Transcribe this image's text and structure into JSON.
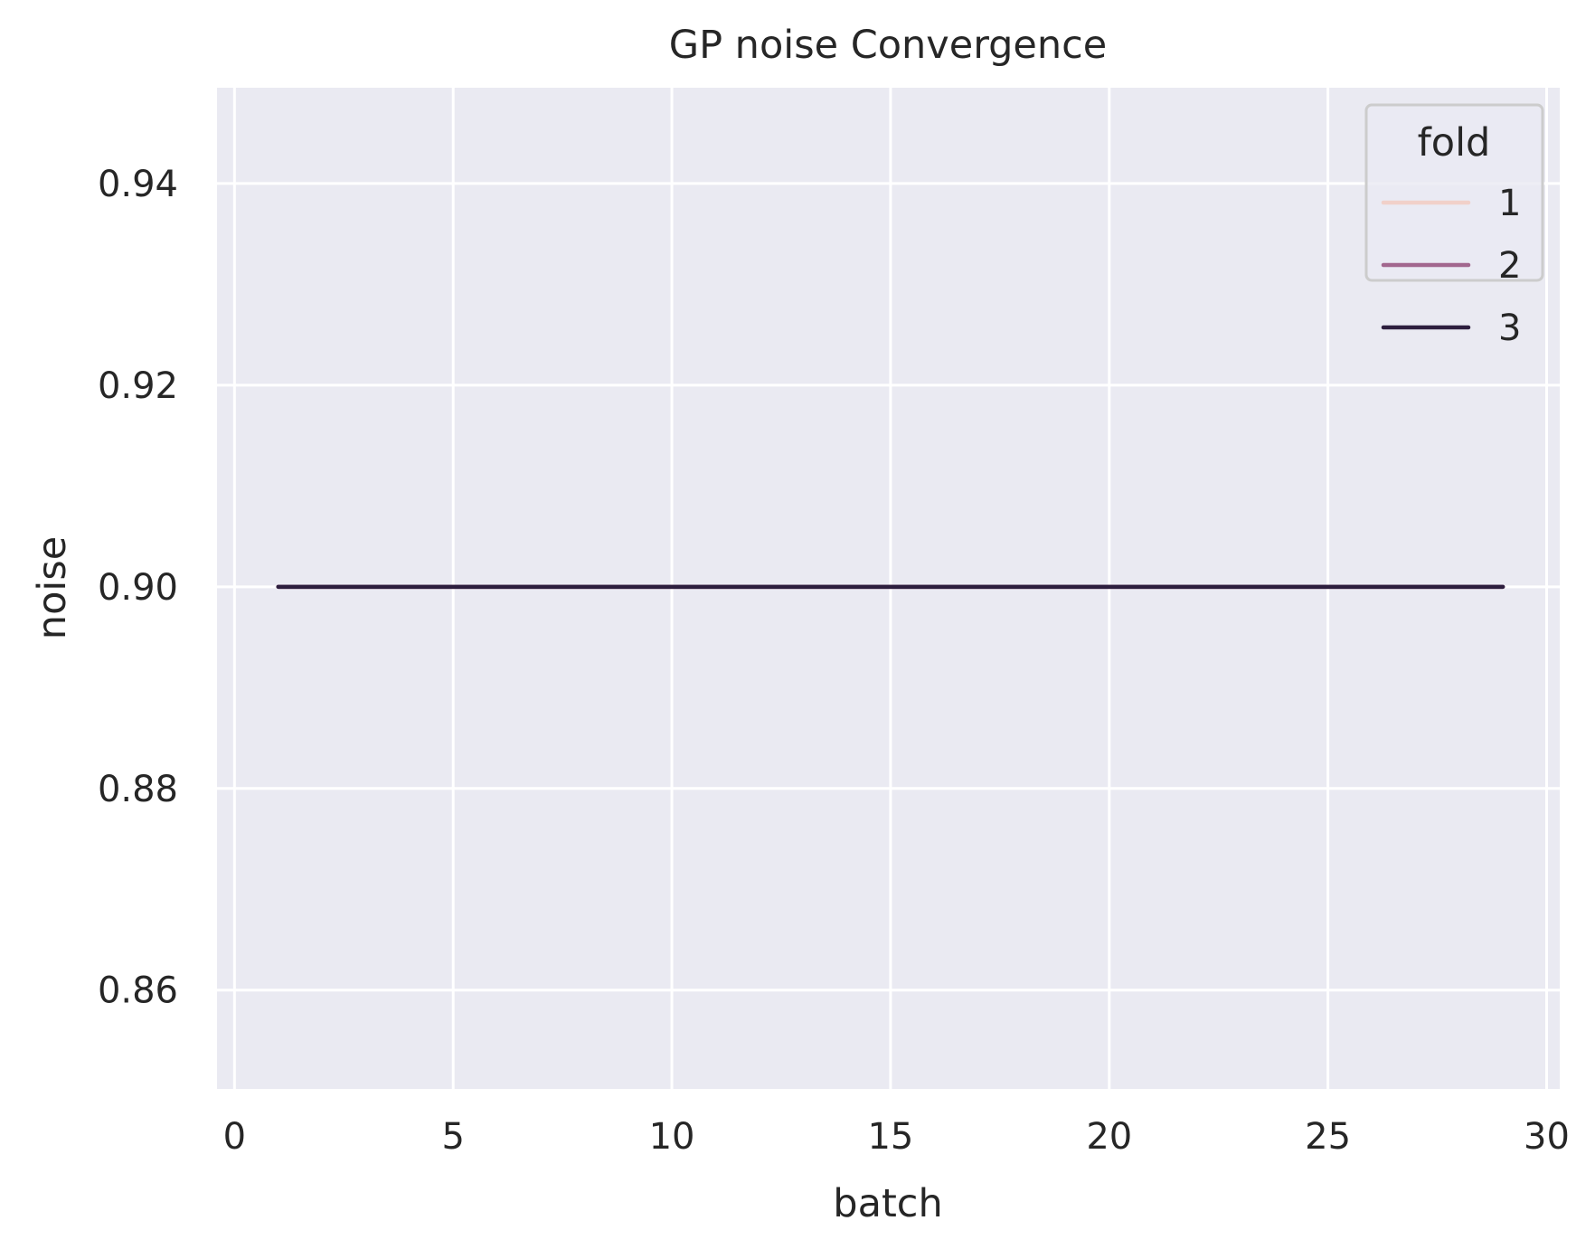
{
  "chart_data": {
    "type": "line",
    "title": "GP noise Convergence",
    "xlabel": "batch",
    "ylabel": "noise",
    "xlim": [
      -0.4,
      30.3
    ],
    "ylim": [
      0.8502,
      0.9495
    ],
    "xticks": [
      0,
      5,
      10,
      15,
      20,
      25,
      30
    ],
    "yticks": [
      0.86,
      0.88,
      0.9,
      0.92,
      0.94
    ],
    "xtick_labels": [
      "0",
      "5",
      "10",
      "15",
      "20",
      "25",
      "30"
    ],
    "ytick_labels": [
      "0.86",
      "0.88",
      "0.90",
      "0.92",
      "0.94"
    ],
    "grid": true,
    "legend": {
      "title": "fold",
      "position": "top-right"
    },
    "series": [
      {
        "name": "1",
        "color": "#f1d0c9",
        "x": [
          1,
          2,
          3,
          4,
          5,
          6,
          7,
          8,
          9,
          10,
          11,
          12,
          13,
          14,
          15,
          16,
          17,
          18,
          19,
          20,
          21,
          22,
          23,
          24,
          25,
          26,
          27,
          28,
          29
        ],
        "y": [
          0.9,
          0.9,
          0.9,
          0.9,
          0.9,
          0.9,
          0.9,
          0.9,
          0.9,
          0.9,
          0.9,
          0.9,
          0.9,
          0.9,
          0.9,
          0.9,
          0.9,
          0.9,
          0.9,
          0.9,
          0.9,
          0.9,
          0.9,
          0.9,
          0.9,
          0.9,
          0.9,
          0.9,
          0.9
        ]
      },
      {
        "name": "2",
        "color": "#a2678e",
        "x": [
          1,
          2,
          3,
          4,
          5,
          6,
          7,
          8,
          9,
          10,
          11,
          12,
          13,
          14,
          15,
          16,
          17,
          18,
          19,
          20,
          21,
          22,
          23,
          24,
          25,
          26,
          27,
          28,
          29
        ],
        "y": [
          0.9,
          0.9,
          0.9,
          0.9,
          0.9,
          0.9,
          0.9,
          0.9,
          0.9,
          0.9,
          0.9,
          0.9,
          0.9,
          0.9,
          0.9,
          0.9,
          0.9,
          0.9,
          0.9,
          0.9,
          0.9,
          0.9,
          0.9,
          0.9,
          0.9,
          0.9,
          0.9,
          0.9,
          0.9
        ]
      },
      {
        "name": "3",
        "color": "#2d1e3e",
        "x": [
          1,
          2,
          3,
          4,
          5,
          6,
          7,
          8,
          9,
          10,
          11,
          12,
          13,
          14,
          15,
          16,
          17,
          18,
          19,
          20,
          21,
          22,
          23,
          24,
          25,
          26,
          27,
          28,
          29
        ],
        "y": [
          0.9,
          0.9,
          0.9,
          0.9,
          0.9,
          0.9,
          0.9,
          0.9,
          0.9,
          0.9,
          0.9,
          0.9,
          0.9,
          0.9,
          0.9,
          0.9,
          0.9,
          0.9,
          0.9,
          0.9,
          0.9,
          0.9,
          0.9,
          0.9,
          0.9,
          0.9,
          0.9,
          0.9,
          0.9
        ]
      }
    ],
    "colors": {
      "plot_background": "#eaeaf2",
      "grid": "#ffffff",
      "text": "#262626",
      "legend_frame": "#cccccc"
    }
  }
}
